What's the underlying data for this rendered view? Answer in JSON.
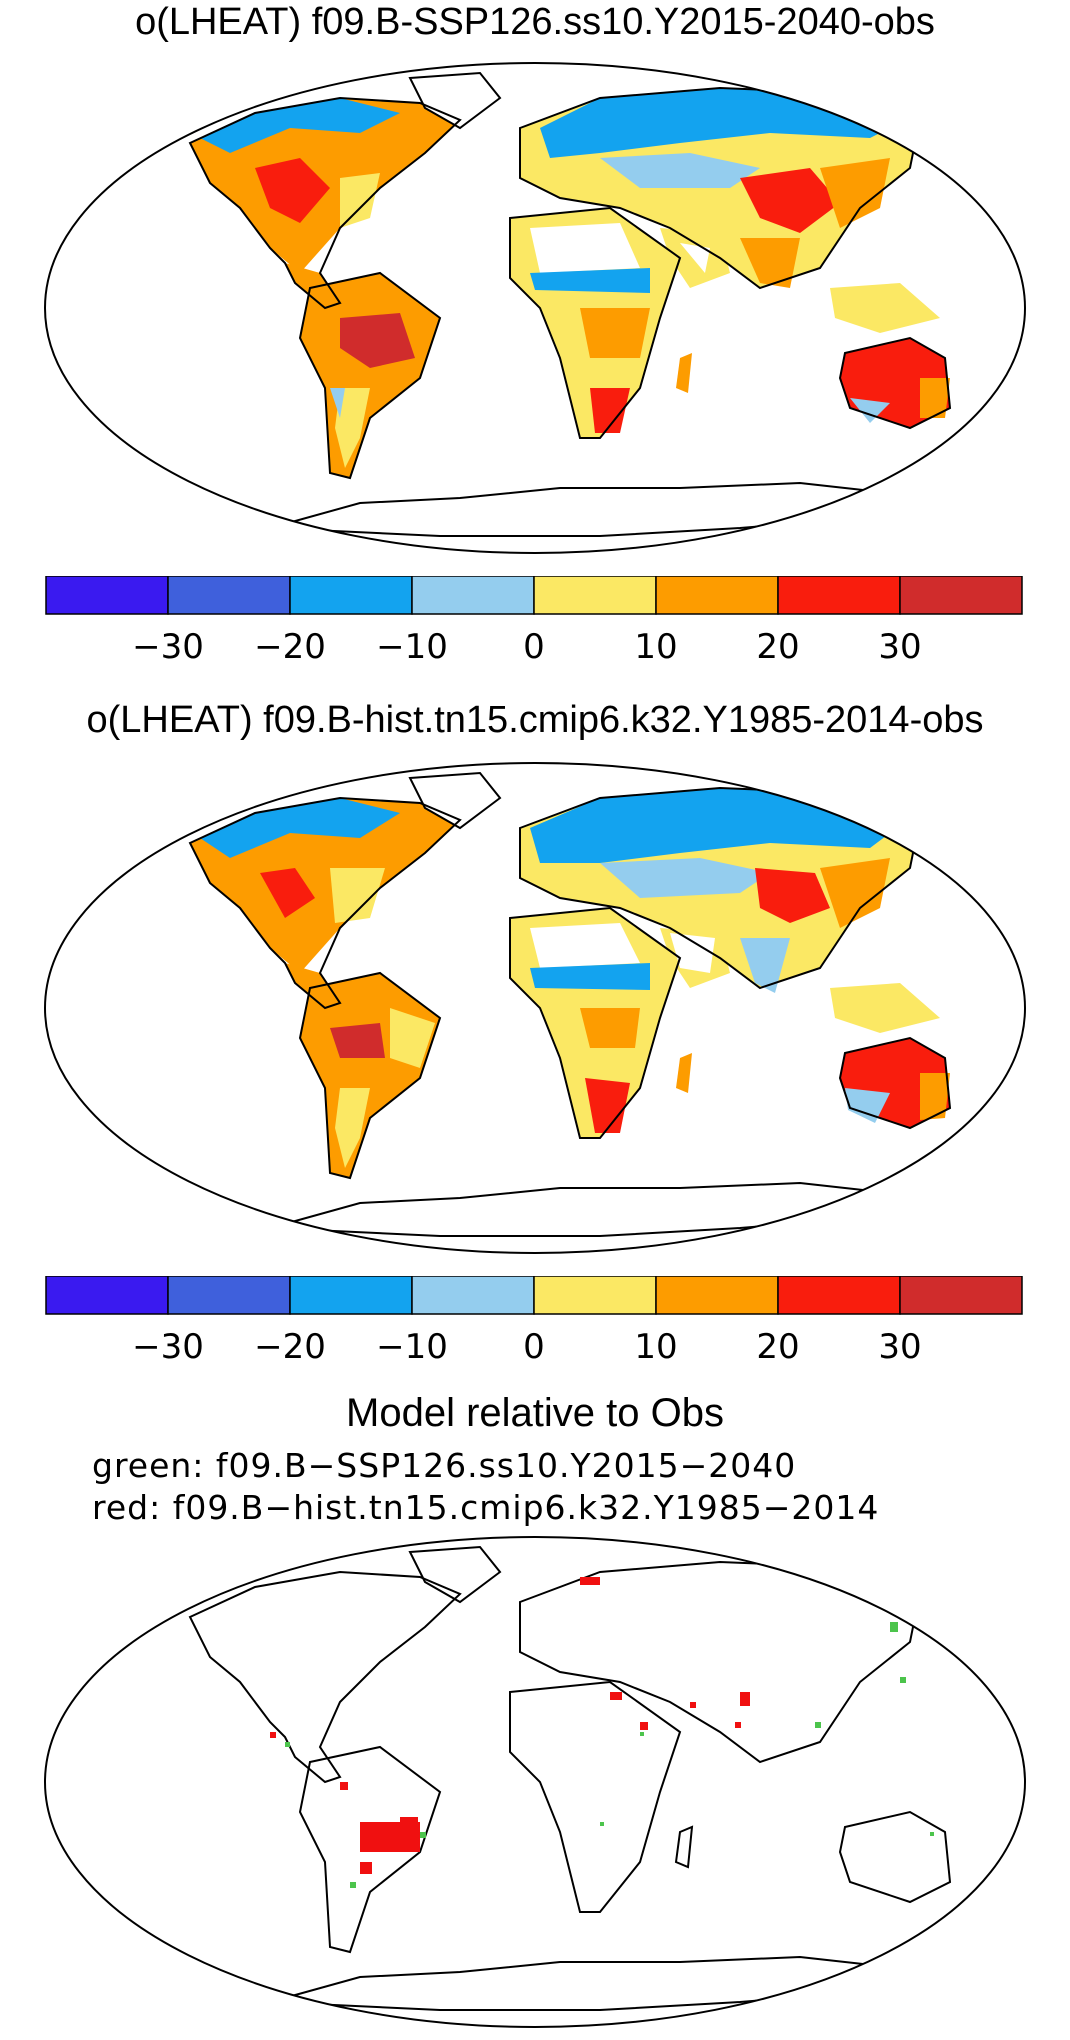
{
  "panels": [
    {
      "title": "o(LHEAT) f09.B-SSP126.ss10.Y2015-2040-obs"
    },
    {
      "title": "o(LHEAT) f09.B-hist.tn15.cmip6.k32.Y1985-2014-obs"
    }
  ],
  "colorbar": {
    "colors": [
      "#3a1af0",
      "#3f60dc",
      "#13a3ef",
      "#94cdee",
      "#fbe864",
      "#fd9c00",
      "#f91d0d",
      "#d02c2c"
    ],
    "ticks": [
      "−30",
      "−20",
      "−10",
      "0",
      "10",
      "20",
      "30"
    ]
  },
  "difference": {
    "title": "Model relative to Obs",
    "legend_green": "green: f09.B−SSP126.ss10.Y2015−2040",
    "legend_red": "red: f09.B−hist.tn15.cmip6.k32.Y1985−2014",
    "colors": {
      "green": "#4cc44c",
      "red": "#f01010"
    }
  }
}
